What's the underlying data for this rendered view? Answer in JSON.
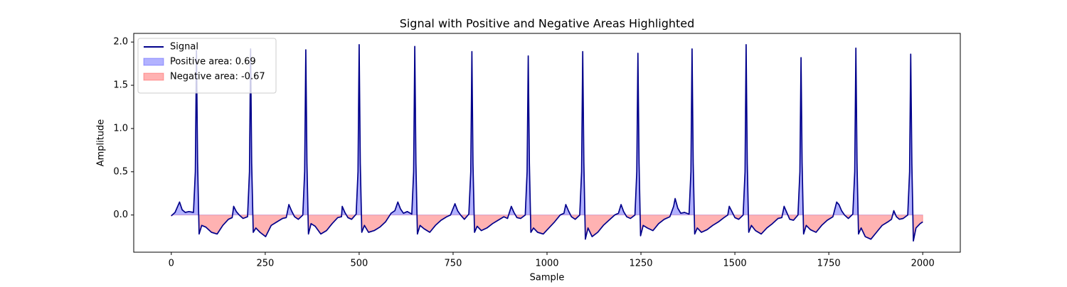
{
  "chart_data": {
    "type": "line",
    "title": "Signal with Positive and Negative Areas Highlighted",
    "xlabel": "Sample",
    "ylabel": "Amplitude",
    "x": [
      0,
      10,
      22,
      29,
      37,
      47,
      59,
      64,
      67,
      70,
      74,
      81,
      92,
      107,
      122,
      137,
      152,
      162,
      166,
      173,
      181,
      191,
      203,
      208,
      211,
      214,
      218,
      225,
      236,
      251,
      266,
      281,
      296,
      306,
      313,
      320,
      328,
      338,
      350,
      355,
      358,
      361,
      365,
      372,
      383,
      398,
      413,
      428,
      443,
      453,
      455,
      462,
      470,
      480,
      492,
      497,
      500,
      503,
      507,
      514,
      525,
      540,
      555,
      570,
      585,
      595,
      603,
      610,
      618,
      628,
      640,
      645,
      648,
      651,
      655,
      662,
      673,
      688,
      703,
      718,
      733,
      743,
      755,
      762,
      770,
      780,
      792,
      797,
      800,
      803,
      807,
      814,
      825,
      840,
      855,
      870,
      885,
      895,
      905,
      912,
      920,
      930,
      942,
      947,
      950,
      953,
      957,
      964,
      975,
      990,
      1005,
      1020,
      1035,
      1045,
      1050,
      1057,
      1065,
      1075,
      1087,
      1092,
      1095,
      1098,
      1102,
      1109,
      1120,
      1135,
      1150,
      1165,
      1180,
      1190,
      1197,
      1204,
      1212,
      1222,
      1234,
      1239,
      1242,
      1245,
      1249,
      1256,
      1267,
      1282,
      1297,
      1312,
      1327,
      1337,
      1341,
      1348,
      1356,
      1366,
      1378,
      1383,
      1386,
      1389,
      1393,
      1400,
      1411,
      1426,
      1441,
      1456,
      1471,
      1481,
      1485,
      1492,
      1500,
      1510,
      1522,
      1527,
      1530,
      1533,
      1537,
      1544,
      1555,
      1570,
      1585,
      1600,
      1615,
      1625,
      1631,
      1638,
      1646,
      1656,
      1668,
      1673,
      1676,
      1679,
      1683,
      1690,
      1701,
      1716,
      1731,
      1746,
      1761,
      1771,
      1777,
      1784,
      1792,
      1802,
      1814,
      1819,
      1822,
      1825,
      1829,
      1836,
      1847,
      1862,
      1877,
      1892,
      1907,
      1917,
      1923,
      1930,
      1938,
      1948,
      1960,
      1965,
      1968,
      1971,
      1975,
      1982,
      1993,
      2000
    ],
    "series": [
      {
        "name": "Signal",
        "color": "#00008b",
        "values": [
          -0.01,
          0.03,
          0.15,
          0.06,
          0.03,
          0.04,
          0.03,
          0.5,
          1.9,
          0.6,
          -0.22,
          -0.12,
          -0.14,
          -0.2,
          -0.22,
          -0.12,
          -0.05,
          -0.03,
          0.1,
          0.04,
          0.0,
          -0.04,
          -0.02,
          0.5,
          1.92,
          0.6,
          -0.2,
          -0.15,
          -0.2,
          -0.25,
          -0.12,
          -0.08,
          -0.04,
          -0.03,
          0.12,
          0.05,
          -0.02,
          -0.05,
          0.0,
          0.5,
          1.91,
          0.6,
          -0.22,
          -0.1,
          -0.13,
          -0.22,
          -0.18,
          -0.1,
          -0.03,
          -0.02,
          0.1,
          0.03,
          -0.03,
          -0.05,
          0.01,
          0.5,
          1.97,
          0.6,
          -0.2,
          -0.12,
          -0.2,
          -0.18,
          -0.14,
          -0.08,
          0.02,
          0.05,
          0.15,
          0.07,
          0.02,
          0.04,
          0.01,
          0.5,
          1.95,
          0.6,
          -0.22,
          -0.12,
          -0.16,
          -0.2,
          -0.12,
          -0.06,
          -0.02,
          0.0,
          0.13,
          0.05,
          0.0,
          -0.05,
          0.01,
          0.5,
          1.89,
          0.6,
          -0.2,
          -0.13,
          -0.18,
          -0.15,
          -0.1,
          -0.06,
          -0.02,
          -0.04,
          0.1,
          0.03,
          -0.03,
          -0.04,
          0.0,
          0.5,
          1.84,
          0.6,
          -0.2,
          -0.15,
          -0.2,
          -0.22,
          -0.15,
          -0.08,
          0.0,
          0.02,
          0.12,
          0.05,
          -0.02,
          -0.05,
          0.0,
          0.5,
          1.89,
          0.6,
          -0.28,
          -0.15,
          -0.25,
          -0.2,
          -0.12,
          -0.06,
          0.0,
          0.02,
          0.12,
          0.04,
          -0.02,
          -0.04,
          0.0,
          0.5,
          1.87,
          0.6,
          -0.24,
          -0.12,
          -0.15,
          -0.18,
          -0.1,
          -0.05,
          -0.02,
          0.1,
          0.19,
          0.08,
          0.02,
          0.03,
          0.01,
          0.5,
          1.92,
          0.6,
          -0.22,
          -0.15,
          -0.2,
          -0.17,
          -0.12,
          -0.08,
          -0.03,
          0.0,
          0.1,
          0.04,
          -0.03,
          -0.05,
          0.0,
          0.5,
          1.97,
          0.6,
          -0.2,
          -0.12,
          -0.18,
          -0.22,
          -0.15,
          -0.1,
          -0.04,
          -0.03,
          0.1,
          0.03,
          -0.05,
          -0.06,
          0.0,
          0.5,
          1.82,
          0.6,
          -0.22,
          -0.12,
          -0.17,
          -0.2,
          -0.12,
          -0.06,
          -0.02,
          0.15,
          0.12,
          0.05,
          0.0,
          -0.04,
          0.01,
          0.5,
          1.93,
          0.6,
          -0.22,
          -0.15,
          -0.25,
          -0.28,
          -0.2,
          -0.12,
          -0.08,
          -0.05,
          0.05,
          -0.02,
          -0.05,
          -0.04,
          0.0,
          0.5,
          1.86,
          0.6,
          -0.3,
          -0.15,
          -0.1,
          -0.08
        ]
      }
    ],
    "fills": [
      {
        "name": "Positive area: 0.69",
        "color": "#0000ff",
        "where": "above"
      },
      {
        "name": "Negative area: -0.67",
        "color": "#ff0000",
        "where": "below"
      }
    ],
    "xlim": [
      -100,
      2100
    ],
    "xticks": [
      0,
      250,
      500,
      750,
      1000,
      1250,
      1500,
      1750,
      2000
    ],
    "ylim": [
      -0.43,
      2.1
    ],
    "yticks": [
      {
        "value": 0,
        "label": "0.0"
      },
      0.5,
      {
        "value": 1,
        "label": "1.0"
      },
      1.5,
      {
        "value": 2,
        "label": "2.0"
      }
    ],
    "legend": "upper left"
  }
}
